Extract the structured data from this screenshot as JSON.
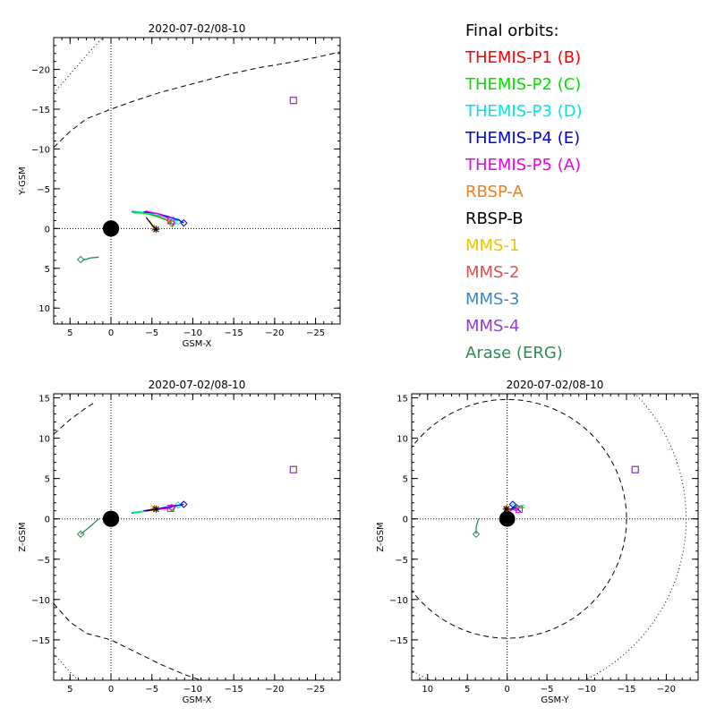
{
  "legend": {
    "heading": "Final orbits:",
    "entries": [
      {
        "label": "THEMIS-P1 (B)",
        "color": "#ff0000"
      },
      {
        "label": "THEMIS-P2 (C)",
        "color": "#00e000"
      },
      {
        "label": "THEMIS-P3 (D)",
        "color": "#00e5e5"
      },
      {
        "label": "THEMIS-P4 (E)",
        "color": "#0000e0"
      },
      {
        "label": "THEMIS-P5 (A)",
        "color": "#ee00ee"
      },
      {
        "label": "RBSP-A",
        "color": "#ee7f1f"
      },
      {
        "label": "RBSP-B",
        "color": "#000000"
      },
      {
        "label": "MMS-1",
        "color": "#f2c200"
      },
      {
        "label": "MMS-2",
        "color": "#e05050"
      },
      {
        "label": "MMS-3",
        "color": "#3a87c8"
      },
      {
        "label": "MMS-4",
        "color": "#9040d0"
      },
      {
        "label": "Arase (ERG)",
        "color": "#2e8b57"
      }
    ]
  },
  "chart_data": [
    {
      "type": "line",
      "title": "2020-07-02/08-10",
      "xlabel": "GSM-X",
      "ylabel": "Y-GSM",
      "xlim": [
        7,
        -28
      ],
      "ylim": [
        12,
        -24
      ],
      "xticks": [
        5,
        0,
        -5,
        -10,
        -15,
        -20,
        -25
      ],
      "xticklabels": [
        "5",
        "0",
        "−5",
        "−10",
        "−15",
        "−20",
        "−25"
      ],
      "yticks": [
        10,
        5,
        0,
        -5,
        -10,
        -15,
        -20
      ],
      "yticklabels": [
        "10",
        "5",
        "0",
        "−5",
        "−10",
        "−15",
        "−20"
      ],
      "earth": {
        "x": 0,
        "y": 0,
        "r": 1
      },
      "dashed_curve": [
        [
          7,
          -10.2
        ],
        [
          5,
          -12.2
        ],
        [
          3,
          -13.8
        ],
        [
          0,
          -15.0
        ],
        [
          -3,
          -16.1
        ],
        [
          -6,
          -17.1
        ],
        [
          -10,
          -18.2
        ],
        [
          -14,
          -19.3
        ],
        [
          -18,
          -20.2
        ],
        [
          -22,
          -20.9
        ],
        [
          -25,
          -21.5
        ],
        [
          -28,
          -22.2
        ]
      ],
      "dotted_curves": [
        [
          [
            7,
            -17.0
          ],
          [
            5,
            -19.4
          ],
          [
            3,
            -21.8
          ],
          [
            1,
            -24.0
          ]
        ],
        [
          [
            7,
            11.7
          ],
          [
            6.2,
            12.0
          ]
        ]
      ],
      "series": [
        {
          "name": "THEMIS-P1 (B)",
          "color": "#ff0000",
          "path": [
            [
              -2.5,
              -2.1
            ],
            [
              -4.0,
              -2.0
            ],
            [
              -5.5,
              -1.6
            ],
            [
              -6.6,
              -1.2
            ],
            [
              -7.4,
              -0.7
            ]
          ],
          "marker": "diamond",
          "marker_at": [
            -7.4,
            -0.7
          ]
        },
        {
          "name": "THEMIS-P2 (C)",
          "color": "#00e000",
          "path": [
            [
              -2.7,
              -2.0
            ],
            [
              -4.2,
              -1.9
            ],
            [
              -5.6,
              -1.5
            ],
            [
              -6.7,
              -1.1
            ],
            [
              -7.5,
              -0.6
            ]
          ],
          "marker": "diamond",
          "marker_at": [
            -7.5,
            -0.6
          ]
        },
        {
          "name": "THEMIS-P3 (D)",
          "color": "#00e5e5",
          "path": [
            [
              -2.6,
              -2.2
            ],
            [
              -4.4,
              -2.0
            ],
            [
              -6.0,
              -1.6
            ],
            [
              -7.3,
              -1.3
            ],
            [
              -8.2,
              -0.9
            ]
          ],
          "marker": "diamond",
          "marker_at": [
            -8.2,
            -0.9
          ]
        },
        {
          "name": "THEMIS-P4 (E)",
          "color": "#0000e0",
          "path": [
            [
              -4.0,
              -2.1
            ],
            [
              -5.6,
              -1.9
            ],
            [
              -7.0,
              -1.5
            ],
            [
              -8.2,
              -1.1
            ],
            [
              -8.9,
              -0.7
            ]
          ],
          "marker": "diamond",
          "marker_at": [
            -8.9,
            -0.7
          ]
        },
        {
          "name": "THEMIS-P5 (A)",
          "color": "#ee00ee",
          "path": [
            [
              -4.2,
              -2.2
            ],
            [
              -5.6,
              -1.9
            ],
            [
              -6.6,
              -1.5
            ],
            [
              -7.3,
              -1.0
            ]
          ],
          "marker": "square",
          "marker_at": [
            -7.3,
            -1.0
          ]
        },
        {
          "name": "RBSP-A",
          "color": "#ee7f1f",
          "path": [
            [
              -4.7,
              -1.0
            ],
            [
              -5.0,
              -0.4
            ],
            [
              -5.3,
              0.0
            ]
          ],
          "marker": "star",
          "marker_at": [
            -5.3,
            0.0
          ]
        },
        {
          "name": "RBSP-B",
          "color": "#000000",
          "path": [
            [
              -4.3,
              -1.4
            ],
            [
              -4.9,
              -0.6
            ],
            [
              -5.5,
              0.1
            ]
          ],
          "marker": "star",
          "marker_at": [
            -5.5,
            0.1
          ]
        },
        {
          "name": "MMS-1",
          "color": "#f2c200",
          "path": [
            [
              -22.3,
              -16.1
            ]
          ],
          "marker": "square",
          "marker_at": [
            -22.3,
            -16.1
          ]
        },
        {
          "name": "MMS-2",
          "color": "#e05050",
          "path": [
            [
              -22.3,
              -16.1
            ]
          ],
          "marker": "square",
          "marker_at": [
            -22.3,
            -16.1
          ]
        },
        {
          "name": "MMS-3",
          "color": "#3a87c8",
          "path": [
            [
              -22.3,
              -16.1
            ]
          ],
          "marker": "square",
          "marker_at": [
            -22.3,
            -16.1
          ]
        },
        {
          "name": "MMS-4",
          "color": "#9040d0",
          "path": [
            [
              -22.3,
              -16.1
            ]
          ],
          "marker": "square",
          "marker_at": [
            -22.3,
            -16.1
          ]
        },
        {
          "name": "Arase (ERG)",
          "color": "#2e8b57",
          "path": [
            [
              1.5,
              3.6
            ],
            [
              2.5,
              3.7
            ],
            [
              3.5,
              4.0
            ]
          ],
          "marker": "diamond",
          "marker_at": [
            3.7,
            3.9
          ]
        }
      ]
    },
    {
      "type": "line",
      "title": "2020-07-02/08-10",
      "xlabel": "GSM-X",
      "ylabel": "Z-GSM",
      "xlim": [
        7,
        -28
      ],
      "ylim": [
        -20,
        15.5
      ],
      "xticks": [
        5,
        0,
        -5,
        -10,
        -15,
        -20,
        -25
      ],
      "xticklabels": [
        "5",
        "0",
        "−5",
        "−10",
        "−15",
        "−20",
        "−25"
      ],
      "yticks": [
        15,
        10,
        5,
        0,
        -5,
        -10,
        -15
      ],
      "yticklabels": [
        "15",
        "10",
        "5",
        "0",
        "−5",
        "−10",
        "−15"
      ],
      "earth": {
        "x": 0,
        "y": 0,
        "r": 1
      },
      "dashed_curve": [
        [
          7,
          10.5
        ],
        [
          5,
          12.3
        ],
        [
          3,
          13.8
        ],
        [
          2,
          14.4
        ]
      ],
      "dashed_curve_2": [
        [
          7,
          -10.5
        ],
        [
          5,
          -12.8
        ],
        [
          3,
          -14.2
        ],
        [
          0,
          -15.0
        ],
        [
          -3,
          -16.5
        ],
        [
          -6,
          -18.0
        ],
        [
          -9,
          -19.3
        ],
        [
          -11,
          -20.0
        ]
      ],
      "dotted_curves": [
        [
          [
            7,
            -16.7
          ],
          [
            5,
            -19.0
          ],
          [
            4,
            -20.0
          ]
        ]
      ],
      "series": [
        {
          "name": "THEMIS-P1 (B)",
          "color": "#ff0000",
          "path": [
            [
              -2.5,
              0.7
            ],
            [
              -4.5,
              1.0
            ],
            [
              -6.5,
              1.3
            ],
            [
              -7.4,
              1.4
            ]
          ],
          "marker": "diamond",
          "marker_at": [
            -7.4,
            1.4
          ]
        },
        {
          "name": "THEMIS-P2 (C)",
          "color": "#00e000",
          "path": [
            [
              -2.7,
              0.7
            ],
            [
              -4.6,
              1.0
            ],
            [
              -6.6,
              1.3
            ],
            [
              -7.5,
              1.4
            ]
          ],
          "marker": "diamond",
          "marker_at": [
            -7.5,
            1.4
          ]
        },
        {
          "name": "THEMIS-P3 (D)",
          "color": "#00e5e5",
          "path": [
            [
              -2.6,
              0.8
            ],
            [
              -5.0,
              1.1
            ],
            [
              -7.0,
              1.5
            ],
            [
              -8.2,
              1.7
            ]
          ],
          "marker": "diamond",
          "marker_at": [
            -8.2,
            1.7
          ]
        },
        {
          "name": "THEMIS-P4 (E)",
          "color": "#0000e0",
          "path": [
            [
              -4.0,
              1.0
            ],
            [
              -6.0,
              1.3
            ],
            [
              -7.8,
              1.6
            ],
            [
              -8.9,
              1.8
            ]
          ],
          "marker": "diamond",
          "marker_at": [
            -8.9,
            1.8
          ]
        },
        {
          "name": "THEMIS-P5 (A)",
          "color": "#ee00ee",
          "path": [
            [
              -4.2,
              1.0
            ],
            [
              -6.0,
              1.2
            ],
            [
              -7.3,
              1.3
            ]
          ],
          "marker": "square",
          "marker_at": [
            -7.3,
            1.3
          ]
        },
        {
          "name": "RBSP-A",
          "color": "#ee7f1f",
          "path": [
            [
              -4.7,
              1.1
            ],
            [
              -5.3,
              1.3
            ]
          ],
          "marker": "star",
          "marker_at": [
            -5.3,
            1.3
          ]
        },
        {
          "name": "RBSP-B",
          "color": "#000000",
          "path": [
            [
              -4.3,
              1.0
            ],
            [
              -5.5,
              1.2
            ]
          ],
          "marker": "star",
          "marker_at": [
            -5.5,
            1.2
          ]
        },
        {
          "name": "MMS-1",
          "color": "#f2c200",
          "path": [
            [
              -22.3,
              6.1
            ]
          ],
          "marker": "square",
          "marker_at": [
            -22.3,
            6.1
          ]
        },
        {
          "name": "MMS-2",
          "color": "#e05050",
          "path": [
            [
              -22.3,
              6.1
            ]
          ],
          "marker": "square",
          "marker_at": [
            -22.3,
            6.1
          ]
        },
        {
          "name": "MMS-3",
          "color": "#3a87c8",
          "path": [
            [
              -22.3,
              6.1
            ]
          ],
          "marker": "square",
          "marker_at": [
            -22.3,
            6.1
          ]
        },
        {
          "name": "MMS-4",
          "color": "#9040d0",
          "path": [
            [
              -22.3,
              6.1
            ]
          ],
          "marker": "square",
          "marker_at": [
            -22.3,
            6.1
          ]
        },
        {
          "name": "Arase (ERG)",
          "color": "#2e8b57",
          "path": [
            [
              1.5,
              0.0
            ],
            [
              2.6,
              -1.0
            ],
            [
              3.7,
              -1.9
            ]
          ],
          "marker": "diamond",
          "marker_at": [
            3.7,
            -1.9
          ]
        }
      ]
    },
    {
      "type": "line",
      "title": "2020-07-02/08-10",
      "xlabel": "GSM-Y",
      "ylabel": "Z-GSM",
      "xlim": [
        12,
        -24
      ],
      "ylim": [
        -20,
        15.5
      ],
      "xticks": [
        10,
        5,
        0,
        -5,
        -10,
        -15,
        -20
      ],
      "xticklabels": [
        "10",
        "5",
        "0",
        "−5",
        "−10",
        "−15",
        "−20"
      ],
      "yticks": [
        15,
        10,
        5,
        0,
        -5,
        -10,
        -15
      ],
      "yticklabels": [
        "15",
        "10",
        "5",
        "0",
        "−5",
        "−10",
        "−15"
      ],
      "earth": {
        "x": 0,
        "y": 0,
        "r": 1
      },
      "dashed_circle": {
        "cx": 0,
        "cy": 0,
        "r": 15
      },
      "dotted_circle": {
        "cx": 0,
        "cy": 0,
        "r": 22.5
      },
      "series": [
        {
          "name": "THEMIS-P1 (B)",
          "color": "#ff0000",
          "path": [
            [
              -0.2,
              1.0
            ],
            [
              -1.0,
              1.3
            ],
            [
              -2.0,
              1.4
            ]
          ],
          "marker": "diamond",
          "marker_at": [
            -1.2,
            1.4
          ]
        },
        {
          "name": "THEMIS-P2 (C)",
          "color": "#00e000",
          "path": [
            [
              0.0,
              1.0
            ],
            [
              -1.0,
              1.3
            ],
            [
              -2.2,
              1.4
            ]
          ],
          "marker": "diamond",
          "marker_at": [
            -1.1,
            1.3
          ]
        },
        {
          "name": "THEMIS-P3 (D)",
          "color": "#00e5e5",
          "path": [
            [
              0.0,
              1.1
            ],
            [
              -1.2,
              1.5
            ],
            [
              -2.2,
              1.7
            ]
          ],
          "marker": "diamond",
          "marker_at": [
            -0.9,
            1.6
          ]
        },
        {
          "name": "THEMIS-P4 (E)",
          "color": "#0000e0",
          "path": [
            [
              -0.4,
              1.2
            ],
            [
              -1.0,
              1.4
            ],
            [
              -1.7,
              0.9
            ]
          ],
          "marker": "diamond",
          "marker_at": [
            -0.7,
            1.8
          ]
        },
        {
          "name": "THEMIS-P5 (A)",
          "color": "#ee00ee",
          "path": [
            [
              -0.3,
              1.0
            ],
            [
              -1.0,
              1.2
            ],
            [
              -1.5,
              1.3
            ]
          ],
          "marker": "square",
          "marker_at": [
            -1.5,
            1.2
          ]
        },
        {
          "name": "RBSP-A",
          "color": "#ee7f1f",
          "path": [
            [
              0.2,
              1.1
            ],
            [
              0.0,
              1.3
            ]
          ],
          "marker": "star",
          "marker_at": [
            0.0,
            1.3
          ]
        },
        {
          "name": "RBSP-B",
          "color": "#000000",
          "path": [
            [
              0.3,
              1.0
            ],
            [
              0.1,
              1.2
            ]
          ],
          "marker": "star",
          "marker_at": [
            0.1,
            1.2
          ]
        },
        {
          "name": "MMS-1",
          "color": "#f2c200",
          "path": [
            [
              -16.1,
              6.1
            ]
          ],
          "marker": "square",
          "marker_at": [
            -16.1,
            6.1
          ]
        },
        {
          "name": "MMS-2",
          "color": "#e05050",
          "path": [
            [
              -16.1,
              6.1
            ]
          ],
          "marker": "square",
          "marker_at": [
            -16.1,
            6.1
          ]
        },
        {
          "name": "MMS-3",
          "color": "#3a87c8",
          "path": [
            [
              -16.1,
              6.1
            ]
          ],
          "marker": "square",
          "marker_at": [
            -16.1,
            6.1
          ]
        },
        {
          "name": "MMS-4",
          "color": "#9040d0",
          "path": [
            [
              -16.1,
              6.1
            ]
          ],
          "marker": "square",
          "marker_at": [
            -16.1,
            6.1
          ]
        },
        {
          "name": "Arase (ERG)",
          "color": "#2e8b57",
          "path": [
            [
              3.6,
              0.0
            ],
            [
              3.9,
              -1.0
            ],
            [
              3.9,
              -1.9
            ]
          ],
          "marker": "diamond",
          "marker_at": [
            3.9,
            -1.9
          ]
        }
      ]
    }
  ]
}
